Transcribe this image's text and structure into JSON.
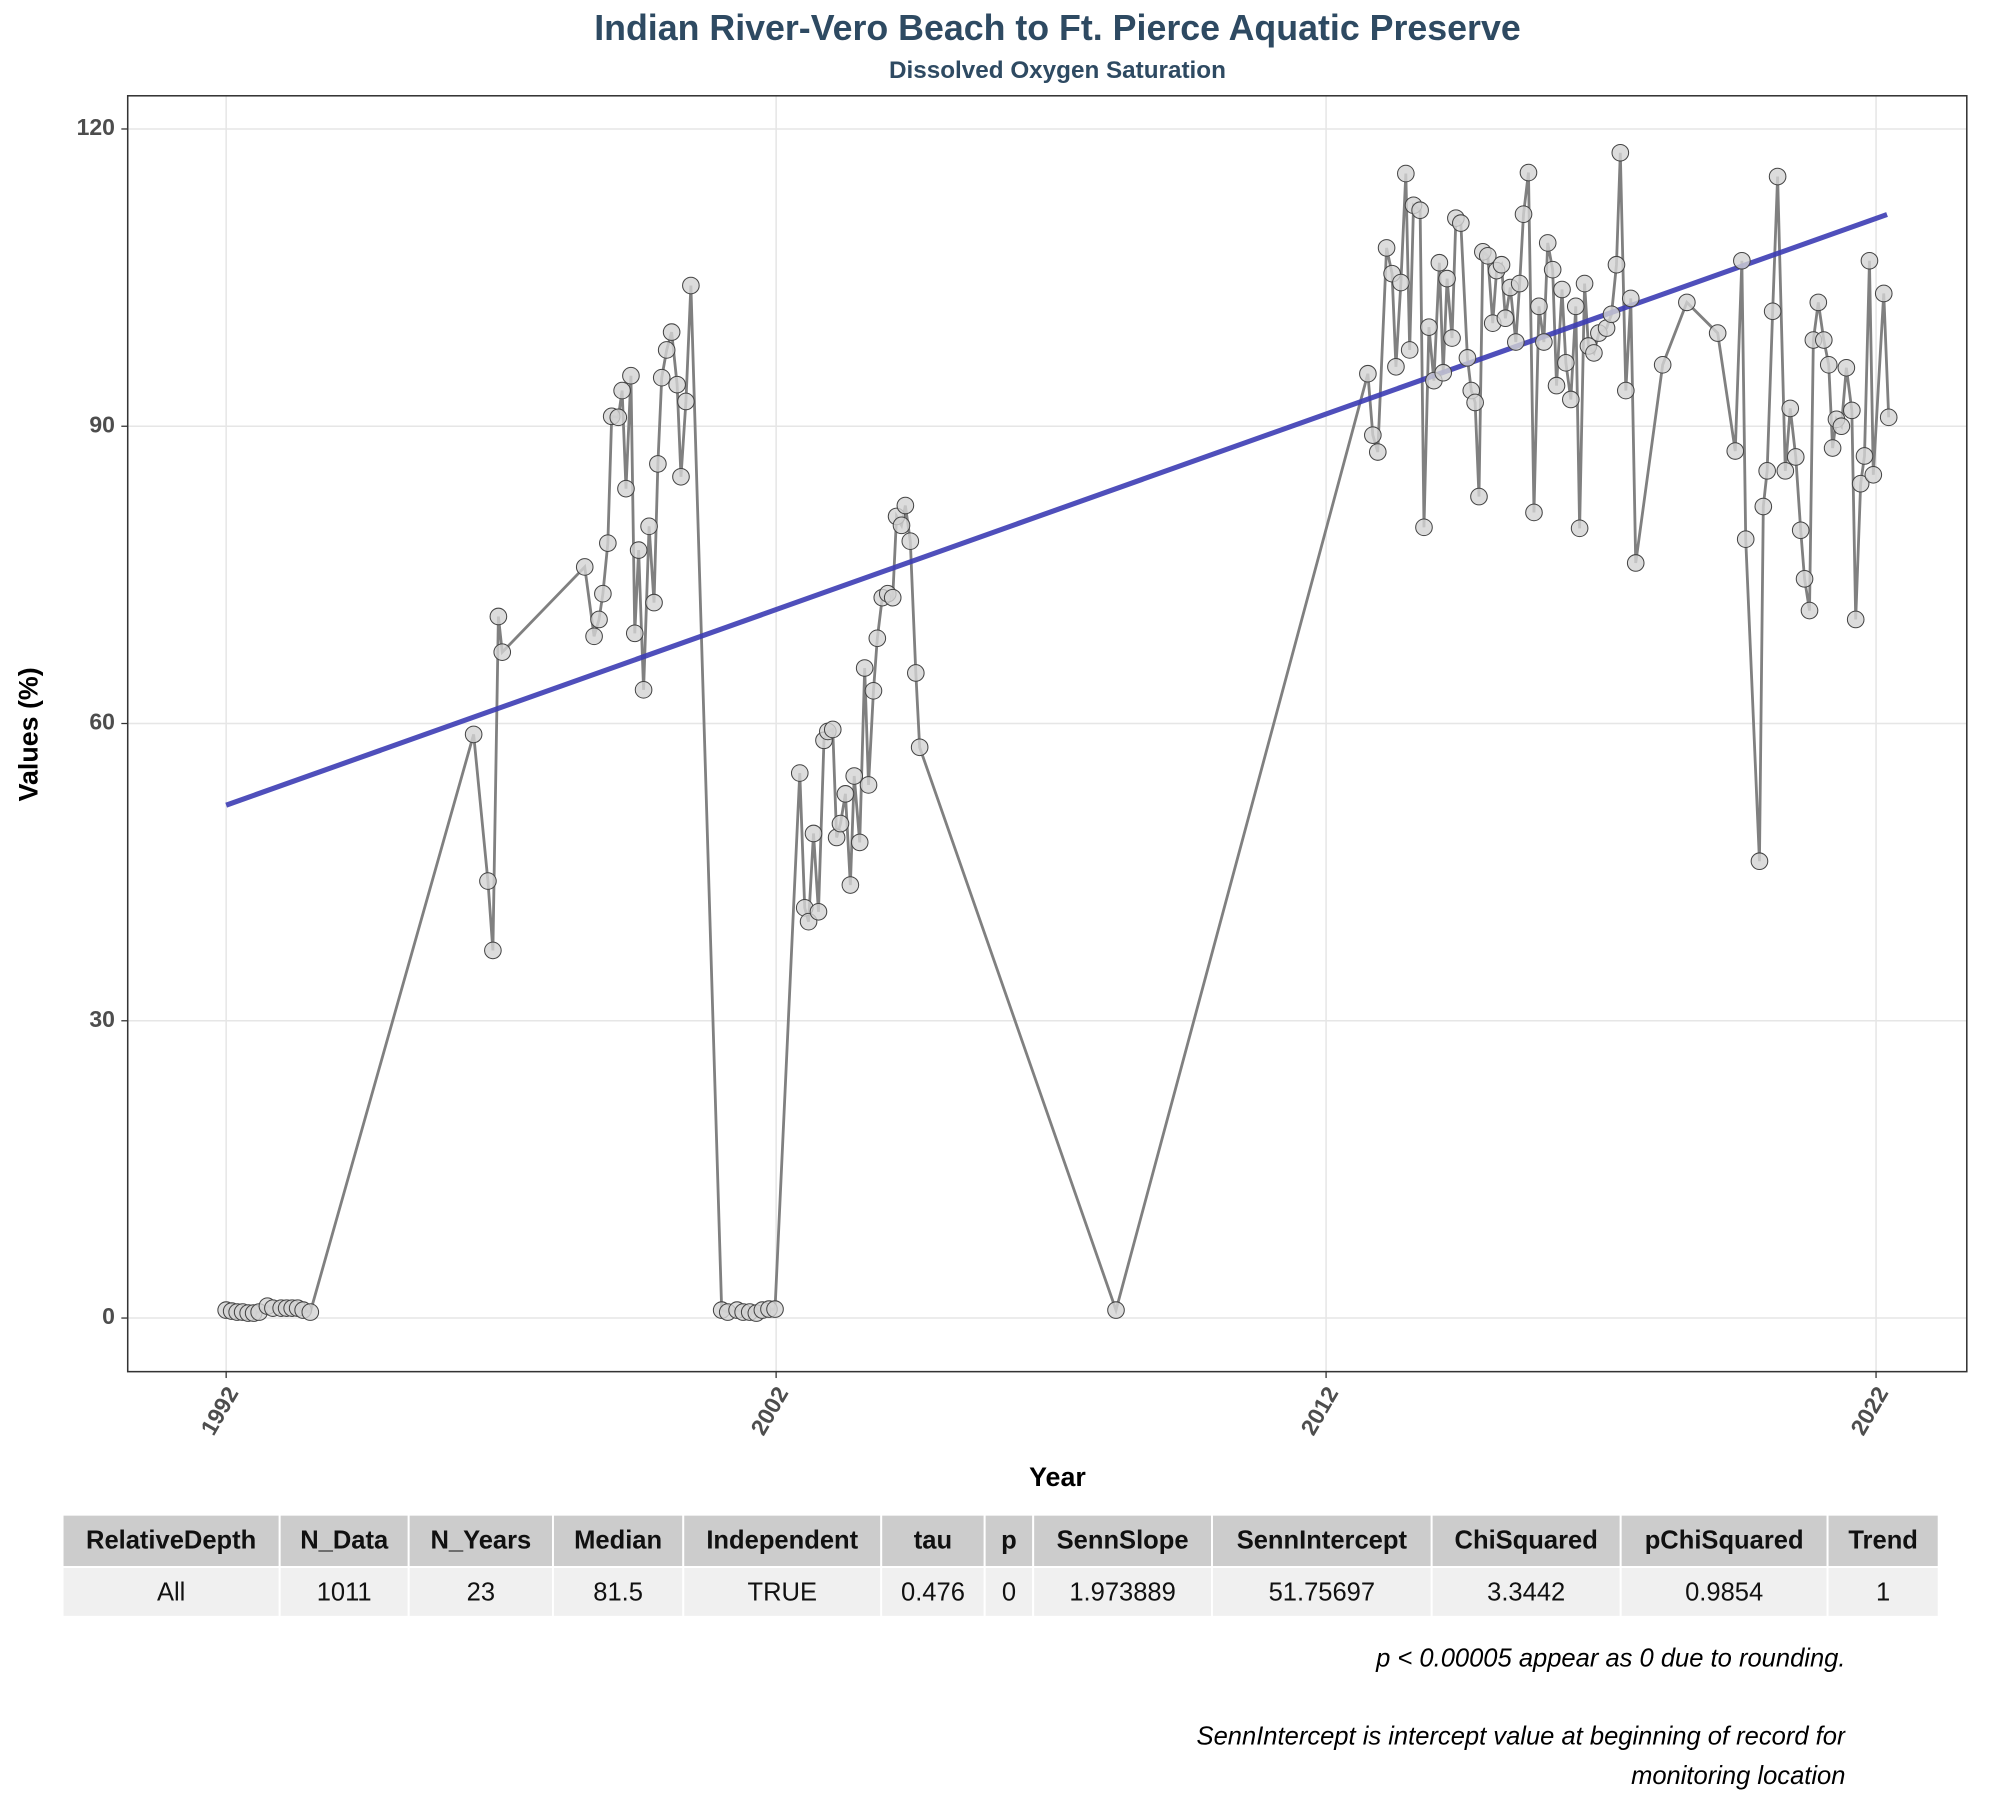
{
  "chart_data": {
    "type": "line",
    "title": "Indian River-Vero Beach to Ft. Pierce Aquatic Preserve",
    "subtitle": "Dissolved Oxygen Saturation",
    "x_label": "Year",
    "y_label": "Values (%)",
    "xlim": [
      1990.21,
      2023.65
    ],
    "ylim": [
      -5.41,
      123.35
    ],
    "xticks": [
      1992,
      2002,
      2012,
      2022
    ],
    "yticks": [
      0,
      30,
      60,
      90,
      120
    ],
    "grid": true,
    "x": [
      1992.0,
      1992.1,
      1992.2,
      1992.3,
      1992.4,
      1992.5,
      1992.6,
      1992.75,
      1992.85,
      1993.0,
      1993.1,
      1993.2,
      1993.3,
      1993.4,
      1993.53,
      1996.5,
      1996.76,
      1996.85,
      1996.95,
      1997.02,
      1998.52,
      1998.69,
      1998.78,
      1998.85,
      1998.94,
      1999.01,
      1999.13,
      1999.2,
      1999.27,
      1999.36,
      1999.43,
      1999.5,
      1999.59,
      1999.69,
      1999.78,
      1999.85,
      1999.92,
      2000.01,
      2000.1,
      2000.2,
      2000.27,
      2000.36,
      2000.45,
      2001.01,
      2001.12,
      2001.29,
      2001.4,
      2001.52,
      2001.64,
      2001.75,
      2001.87,
      2001.98,
      2002.43,
      2002.52,
      2002.59,
      2002.68,
      2002.77,
      2002.87,
      2002.94,
      2003.03,
      2003.1,
      2003.17,
      2003.26,
      2003.35,
      2003.42,
      2003.52,
      2003.61,
      2003.68,
      2003.77,
      2003.84,
      2003.93,
      2004.03,
      2004.12,
      2004.19,
      2004.28,
      2004.35,
      2004.44,
      2004.54,
      2004.61,
      2008.18,
      2012.76,
      2012.85,
      2012.94,
      2013.1,
      2013.2,
      2013.27,
      2013.36,
      2013.45,
      2013.52,
      2013.59,
      2013.71,
      2013.78,
      2013.87,
      2013.96,
      2014.06,
      2014.13,
      2014.2,
      2014.29,
      2014.36,
      2014.45,
      2014.57,
      2014.64,
      2014.71,
      2014.78,
      2014.85,
      2014.94,
      2015.03,
      2015.1,
      2015.19,
      2015.26,
      2015.35,
      2015.45,
      2015.52,
      2015.59,
      2015.68,
      2015.78,
      2015.87,
      2015.96,
      2016.03,
      2016.12,
      2016.19,
      2016.29,
      2016.36,
      2016.45,
      2016.54,
      2016.61,
      2016.7,
      2016.77,
      2016.87,
      2016.96,
      2017.1,
      2017.19,
      2017.28,
      2017.35,
      2017.45,
      2017.54,
      2017.63,
      2018.12,
      2018.56,
      2019.12,
      2019.44,
      2019.56,
      2019.63,
      2019.88,
      2019.95,
      2020.02,
      2020.12,
      2020.21,
      2020.35,
      2020.44,
      2020.54,
      2020.63,
      2020.7,
      2020.79,
      2020.86,
      2020.95,
      2021.05,
      2021.14,
      2021.21,
      2021.28,
      2021.37,
      2021.46,
      2021.56,
      2021.63,
      2021.72,
      2021.79,
      2021.88,
      2021.95,
      2022.14,
      2022.23
    ],
    "series": [
      {
        "color": "#808080",
        "values": [
          0.8,
          0.7,
          0.6,
          0.6,
          0.5,
          0.5,
          0.6,
          1.2,
          1.0,
          1.0,
          1.0,
          1.0,
          1.0,
          0.8,
          0.6,
          58.9,
          44.1,
          37.1,
          70.8,
          67.2,
          75.8,
          68.8,
          70.5,
          73.1,
          78.2,
          91.0,
          90.9,
          93.6,
          83.7,
          95.1,
          69.1,
          77.5,
          63.4,
          79.9,
          72.2,
          86.2,
          94.9,
          97.7,
          99.5,
          94.2,
          84.9,
          92.5,
          104.2,
          0.8,
          0.6,
          0.8,
          0.6,
          0.6,
          0.5,
          0.8,
          0.9,
          0.9,
          55.0,
          41.4,
          40.0,
          48.9,
          41.0,
          58.3,
          59.2,
          59.4,
          48.5,
          49.9,
          52.9,
          43.7,
          54.7,
          48.0,
          65.6,
          53.8,
          63.3,
          68.6,
          72.7,
          73.1,
          72.7,
          80.9,
          80.0,
          82.0,
          78.4,
          65.1,
          57.6,
          0.8,
          95.3,
          89.1,
          87.4,
          108.0,
          105.4,
          96.0,
          104.5,
          115.5,
          97.7,
          112.3,
          111.8,
          79.8,
          100.0,
          94.6,
          106.5,
          95.4,
          104.9,
          98.9,
          111.0,
          110.5,
          96.9,
          93.6,
          92.4,
          82.9,
          107.6,
          107.2,
          100.4,
          105.7,
          106.3,
          100.9,
          104.0,
          98.5,
          104.4,
          111.4,
          115.6,
          81.3,
          102.1,
          98.5,
          108.5,
          105.8,
          94.1,
          103.8,
          96.4,
          92.7,
          102.1,
          79.7,
          104.4,
          98.1,
          97.4,
          99.4,
          99.9,
          101.3,
          106.3,
          117.6,
          93.6,
          102.9,
          76.2,
          96.2,
          102.5,
          99.4,
          87.5,
          106.7,
          78.6,
          46.1,
          81.9,
          85.5,
          101.6,
          115.2,
          85.5,
          91.8,
          86.9,
          79.5,
          74.6,
          71.4,
          98.7,
          102.5,
          98.7,
          96.2,
          87.8,
          90.7,
          90.0,
          95.9,
          91.6,
          70.5,
          84.2,
          87.0,
          106.7,
          85.1,
          103.4,
          90.9
        ]
      },
      {
        "color": "#3c3cb4",
        "x": [
          1992.0,
          2022.2
        ],
        "values": [
          51.76,
          111.37
        ]
      }
    ]
  },
  "table": {
    "columns": [
      "RelativeDepth",
      "N_Data",
      "N_Years",
      "Median",
      "Independent",
      "tau",
      "p",
      "SennSlope",
      "SennIntercept",
      "ChiSquared",
      "pChiSquared",
      "Trend"
    ],
    "rows": [
      [
        "All",
        1011,
        23,
        81.5,
        "TRUE",
        0.476,
        0,
        1.973889,
        51.75697,
        3.3442,
        0.9854,
        1
      ]
    ]
  },
  "notes": [
    "p < 0.00005 appear as 0 due to rounding.",
    "SennIntercept is intercept value at beginning of record for monitoring location"
  ]
}
